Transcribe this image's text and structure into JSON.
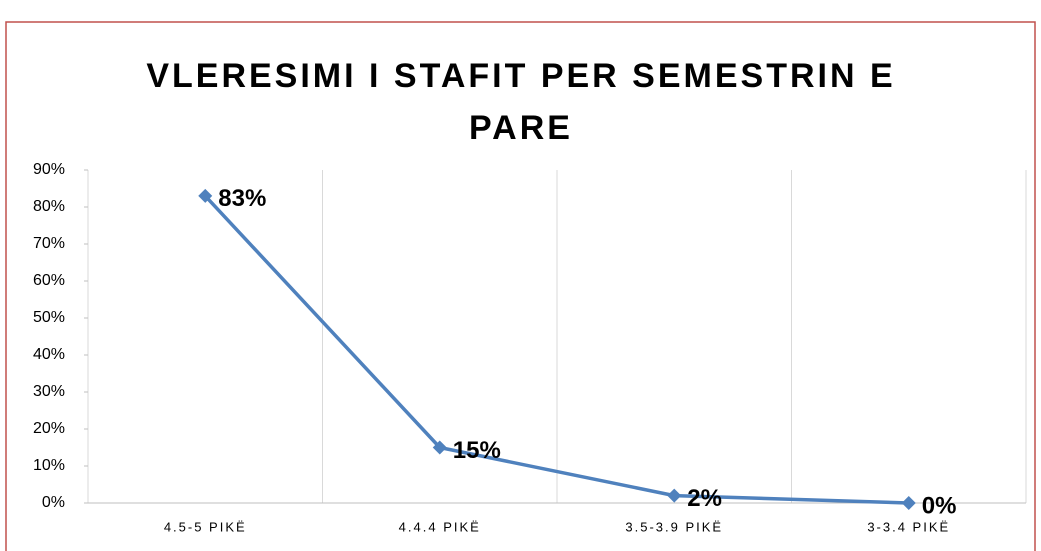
{
  "chart_data": {
    "type": "line",
    "title_lines": [
      "VLERESIMI I STAFIT PER SEMESTRIN E",
      "PARE"
    ],
    "categories": [
      "4.5-5 PIKË",
      "4.4.4 PIKË",
      "3.5-3.9 PIKË",
      "3-3.4 PIKË"
    ],
    "values": [
      83,
      15,
      2,
      0
    ],
    "value_labels": [
      "83%",
      "15%",
      "2%",
      "0%"
    ],
    "color": "#4f81bd",
    "ylim": [
      0,
      90
    ],
    "yticks": [
      {
        "value": 0,
        "label": "0%"
      },
      {
        "value": 10,
        "label": "10%"
      },
      {
        "value": 20,
        "label": "20%"
      },
      {
        "value": 30,
        "label": "30%"
      },
      {
        "value": 40,
        "label": "40%"
      },
      {
        "value": 50,
        "label": "50%"
      },
      {
        "value": 60,
        "label": "60%"
      },
      {
        "value": 70,
        "label": "70%"
      },
      {
        "value": 80,
        "label": "80%"
      },
      {
        "value": 90,
        "label": "90%"
      }
    ]
  }
}
